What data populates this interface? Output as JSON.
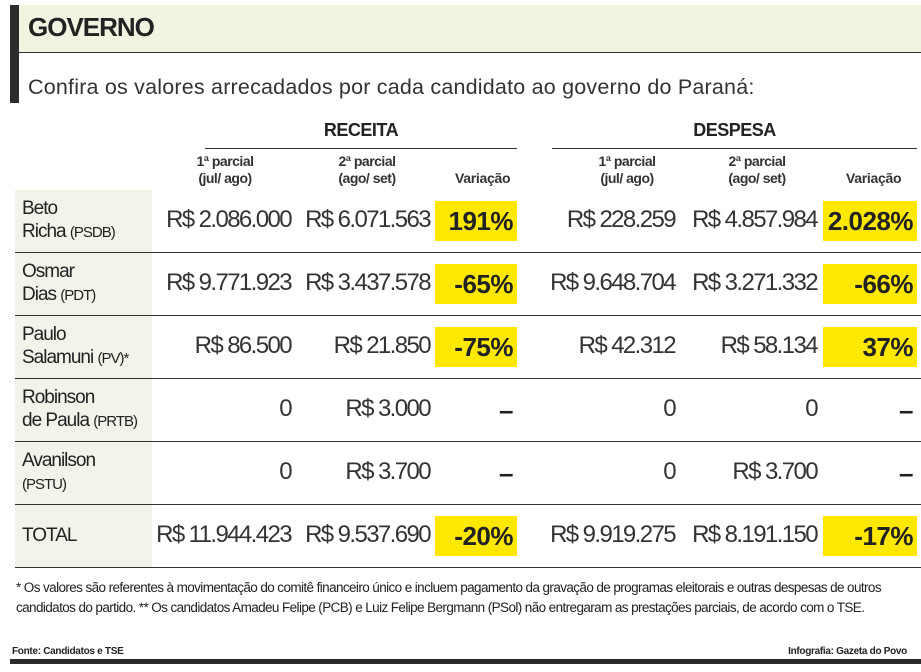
{
  "title": "GOVERNO",
  "subtitle": "Confira os valores arrecadados por cada candidato ao governo do Paraná:",
  "groups": {
    "receita": "RECEITA",
    "despesa": "DESPESA"
  },
  "columns": {
    "p1a": "1ª parcial",
    "p1b": "(jul/ ago)",
    "p2a": "2ª parcial",
    "p2b": "(ago/ set)",
    "var": "Variação"
  },
  "highlight_color": "#ffe800",
  "rows": [
    {
      "name": "Beto",
      "name2": "Richa",
      "party": "(PSDB)",
      "r1": "R$ 2.086.000",
      "r2": "R$ 6.071.563",
      "rv": "191%",
      "d1": "R$ 228.259",
      "d2": "R$ 4.857.984",
      "dv": "2.028%",
      "hl": true
    },
    {
      "name": "Osmar",
      "name2": "Dias",
      "party": "(PDT)",
      "r1": "R$ 9.771.923",
      "r2": "R$ 3.437.578",
      "rv": "-65%",
      "d1": "R$ 9.648.704",
      "d2": "R$ 3.271.332",
      "dv": "-66%",
      "hl": true
    },
    {
      "name": "Paulo",
      "name2": "Salamuni",
      "party": "(PV)*",
      "r1": "R$ 86.500",
      "r2": "R$ 21.850",
      "rv": "-75%",
      "d1": "R$ 42.312",
      "d2": "R$ 58.134",
      "dv": "37%",
      "hl": true
    },
    {
      "name": "Robinson",
      "name2": "de Paula",
      "party": "(PRTB)",
      "r1": "0",
      "r2": "R$ 3.000",
      "rv": "–",
      "d1": "0",
      "d2": "0",
      "dv": "–",
      "hl": false
    },
    {
      "name": "Avanilson",
      "name2": "",
      "party": "(PSTU)",
      "r1": "0",
      "r2": "R$ 3.700",
      "rv": "–",
      "d1": "0",
      "d2": "R$ 3.700",
      "dv": "–",
      "hl": false
    },
    {
      "name": "TOTAL",
      "name2": "",
      "party": "",
      "r1": "R$ 11.944.423",
      "r2": "R$ 9.537.690",
      "rv": "-20%",
      "d1": "R$ 9.919.275",
      "d2": "R$ 8.191.150",
      "dv": "-17%",
      "hl": true
    }
  ],
  "footnote": "* Os valores são referentes à movimentação do comitê financeiro único e incluem pagamento da gravação de programas eleitorais e outras despesas de outros candidatos do partido. ** Os candidatos Amadeu Felipe (PCB) e Luiz Felipe Bergmann (PSol) não entregaram as prestações parciais, de acordo com o TSE.",
  "source": "Fonte: Candidatos e TSE",
  "credit": "Infografia: Gazeta do Povo"
}
